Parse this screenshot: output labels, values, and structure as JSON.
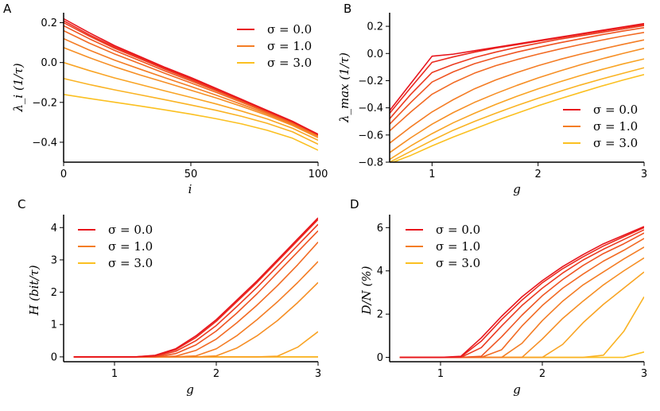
{
  "chart_data": [
    {
      "panel": "A",
      "type": "line",
      "xlabel": "i",
      "ylabel": "λ_i (1/τ)",
      "xlim": [
        0,
        100
      ],
      "ylim": [
        -0.5,
        0.25
      ],
      "xticks": [
        0,
        50,
        100
      ],
      "xtick_labels": [
        "0",
        "50",
        "100"
      ],
      "yticks": [
        0.2,
        0.0,
        -0.2,
        -0.4
      ],
      "ytick_labels": [
        "0.2",
        "0.0",
        "−0.2",
        "−0.4"
      ],
      "legend": [
        "σ = 0.0",
        "σ = 1.0",
        "σ = 3.0"
      ],
      "legend_loc": "top-right",
      "x": [
        0,
        10,
        20,
        30,
        40,
        50,
        60,
        70,
        80,
        90,
        100
      ],
      "series": [
        {
          "name": "s0",
          "values": [
            0.22,
            0.15,
            0.085,
            0.03,
            -0.025,
            -0.075,
            -0.13,
            -0.185,
            -0.24,
            -0.295,
            -0.36
          ]
        },
        {
          "name": "s1",
          "values": [
            0.21,
            0.14,
            0.078,
            0.025,
            -0.03,
            -0.08,
            -0.133,
            -0.187,
            -0.242,
            -0.297,
            -0.36
          ]
        },
        {
          "name": "s2",
          "values": [
            0.2,
            0.133,
            0.072,
            0.019,
            -0.035,
            -0.085,
            -0.137,
            -0.19,
            -0.244,
            -0.298,
            -0.361
          ]
        },
        {
          "name": "s3",
          "values": [
            0.185,
            0.12,
            0.061,
            0.009,
            -0.043,
            -0.092,
            -0.142,
            -0.194,
            -0.247,
            -0.3,
            -0.362
          ]
        },
        {
          "name": "s4",
          "values": [
            0.16,
            0.098,
            0.043,
            -0.006,
            -0.055,
            -0.102,
            -0.15,
            -0.2,
            -0.252,
            -0.305,
            -0.365
          ]
        },
        {
          "name": "s5",
          "values": [
            0.12,
            0.063,
            0.012,
            -0.033,
            -0.077,
            -0.12,
            -0.164,
            -0.21,
            -0.258,
            -0.31,
            -0.37
          ]
        },
        {
          "name": "s6",
          "values": [
            0.075,
            0.025,
            -0.021,
            -0.062,
            -0.1,
            -0.139,
            -0.178,
            -0.22,
            -0.265,
            -0.316,
            -0.377
          ]
        },
        {
          "name": "s7",
          "values": [
            0.0,
            -0.04,
            -0.077,
            -0.11,
            -0.143,
            -0.175,
            -0.208,
            -0.244,
            -0.283,
            -0.33,
            -0.39
          ]
        },
        {
          "name": "s8",
          "values": [
            -0.08,
            -0.11,
            -0.137,
            -0.162,
            -0.187,
            -0.213,
            -0.24,
            -0.27,
            -0.305,
            -0.348,
            -0.41
          ]
        },
        {
          "name": "s9",
          "values": [
            -0.16,
            -0.18,
            -0.199,
            -0.218,
            -0.238,
            -0.259,
            -0.282,
            -0.308,
            -0.34,
            -0.38,
            -0.44
          ]
        }
      ]
    },
    {
      "panel": "B",
      "type": "line",
      "xlabel": "g",
      "ylabel": "λ_max (1/τ)",
      "xlim": [
        0.6,
        3.0
      ],
      "ylim": [
        -0.8,
        0.3
      ],
      "xticks": [
        1,
        2,
        3
      ],
      "xtick_labels": [
        "1",
        "2",
        "3"
      ],
      "yticks": [
        0.2,
        0.0,
        -0.2,
        -0.4,
        -0.6,
        -0.8
      ],
      "ytick_labels": [
        "0.2",
        "0.0",
        "−0.2",
        "−0.4",
        "−0.6",
        "−0.8"
      ],
      "legend": [
        "σ = 0.0",
        "σ = 1.0",
        "σ = 3.0"
      ],
      "legend_loc": "bottom-right",
      "x": [
        0.6,
        0.8,
        1.0,
        1.2,
        1.4,
        1.6,
        1.8,
        2.0,
        2.2,
        2.4,
        2.6,
        2.8,
        3.0
      ],
      "series": [
        {
          "name": "s0",
          "values": [
            -0.42,
            -0.22,
            -0.02,
            -0.005,
            0.02,
            0.045,
            0.07,
            0.095,
            0.12,
            0.145,
            0.17,
            0.195,
            0.22
          ]
        },
        {
          "name": "s1",
          "values": [
            -0.44,
            -0.25,
            -0.065,
            -0.025,
            0.01,
            0.04,
            0.065,
            0.09,
            0.115,
            0.14,
            0.165,
            0.19,
            0.212
          ]
        },
        {
          "name": "s2",
          "values": [
            -0.48,
            -0.3,
            -0.14,
            -0.08,
            -0.03,
            0.01,
            0.045,
            0.075,
            0.105,
            0.13,
            0.155,
            0.18,
            0.205
          ]
        },
        {
          "name": "s3",
          "values": [
            -0.52,
            -0.36,
            -0.21,
            -0.135,
            -0.075,
            -0.03,
            0.01,
            0.045,
            0.078,
            0.108,
            0.138,
            0.165,
            0.19
          ]
        },
        {
          "name": "s4",
          "values": [
            -0.57,
            -0.43,
            -0.3,
            -0.215,
            -0.145,
            -0.09,
            -0.045,
            -0.005,
            0.032,
            0.066,
            0.098,
            0.128,
            0.155
          ]
        },
        {
          "name": "s5",
          "values": [
            -0.66,
            -0.54,
            -0.43,
            -0.34,
            -0.26,
            -0.195,
            -0.14,
            -0.09,
            -0.045,
            -0.005,
            0.032,
            0.067,
            0.1
          ]
        },
        {
          "name": "s6",
          "values": [
            -0.73,
            -0.62,
            -0.52,
            -0.435,
            -0.36,
            -0.295,
            -0.235,
            -0.18,
            -0.13,
            -0.083,
            -0.04,
            0.0,
            0.038
          ]
        },
        {
          "name": "s7",
          "values": [
            -0.78,
            -0.68,
            -0.59,
            -0.51,
            -0.44,
            -0.375,
            -0.315,
            -0.26,
            -0.21,
            -0.162,
            -0.118,
            -0.077,
            -0.04
          ]
        },
        {
          "name": "s8",
          "values": [
            -0.8,
            -0.72,
            -0.64,
            -0.565,
            -0.5,
            -0.44,
            -0.383,
            -0.33,
            -0.28,
            -0.232,
            -0.188,
            -0.146,
            -0.105
          ]
        },
        {
          "name": "s9",
          "values": [
            -0.81,
            -0.75,
            -0.68,
            -0.615,
            -0.555,
            -0.495,
            -0.44,
            -0.385,
            -0.335,
            -0.287,
            -0.24,
            -0.196,
            -0.155
          ]
        }
      ]
    },
    {
      "panel": "C",
      "type": "line",
      "xlabel": "g",
      "ylabel": "H (bit/τ)",
      "xlim": [
        0.5,
        3.0
      ],
      "ylim": [
        -0.15,
        4.4
      ],
      "xticks": [
        1,
        2,
        3
      ],
      "xtick_labels": [
        "1",
        "2",
        "3"
      ],
      "yticks": [
        0,
        1,
        2,
        3,
        4
      ],
      "ytick_labels": [
        "0",
        "1",
        "2",
        "3",
        "4"
      ],
      "legend": [
        "σ = 0.0",
        "σ = 1.0",
        "σ = 3.0"
      ],
      "legend_loc": "top-left",
      "x": [
        0.6,
        0.8,
        1.0,
        1.2,
        1.4,
        1.6,
        1.8,
        2.0,
        2.2,
        2.4,
        2.6,
        2.8,
        3.0
      ],
      "series": [
        {
          "name": "s0",
          "values": [
            0,
            0,
            0,
            0,
            0.05,
            0.25,
            0.65,
            1.15,
            1.75,
            2.35,
            3.0,
            3.65,
            4.3
          ]
        },
        {
          "name": "s1",
          "values": [
            0,
            0,
            0,
            0,
            0.04,
            0.22,
            0.6,
            1.1,
            1.7,
            2.3,
            2.95,
            3.6,
            4.25
          ]
        },
        {
          "name": "s2",
          "values": [
            0,
            0,
            0,
            0,
            0.02,
            0.17,
            0.5,
            0.97,
            1.55,
            2.15,
            2.8,
            3.45,
            4.1
          ]
        },
        {
          "name": "s3",
          "values": [
            0,
            0,
            0,
            0,
            0.0,
            0.1,
            0.37,
            0.8,
            1.35,
            1.95,
            2.6,
            3.25,
            3.9
          ]
        },
        {
          "name": "s4",
          "values": [
            0,
            0,
            0,
            0,
            0,
            0.02,
            0.2,
            0.55,
            1.05,
            1.6,
            2.2,
            2.85,
            3.55
          ]
        },
        {
          "name": "s5",
          "values": [
            0,
            0,
            0,
            0,
            0,
            0,
            0.03,
            0.25,
            0.65,
            1.15,
            1.7,
            2.3,
            2.95
          ]
        },
        {
          "name": "s6",
          "values": [
            0,
            0,
            0,
            0,
            0,
            0,
            0,
            0.03,
            0.27,
            0.65,
            1.12,
            1.68,
            2.3
          ]
        },
        {
          "name": "s7",
          "values": [
            0,
            0,
            0,
            0,
            0,
            0,
            0,
            0,
            0,
            0,
            0.02,
            0.3,
            0.78
          ]
        },
        {
          "name": "s8",
          "values": [
            0,
            0,
            0,
            0,
            0,
            0,
            0,
            0,
            0,
            0,
            0,
            0,
            0
          ]
        },
        {
          "name": "s9",
          "values": [
            0,
            0,
            0,
            0,
            0,
            0,
            0,
            0,
            0,
            0,
            0,
            0,
            0
          ]
        }
      ]
    },
    {
      "panel": "D",
      "type": "line",
      "xlabel": "g",
      "ylabel": "D/N (%)",
      "xlim": [
        0.5,
        3.0
      ],
      "ylim": [
        -0.2,
        6.6
      ],
      "xticks": [
        1,
        2,
        3
      ],
      "xtick_labels": [
        "1",
        "2",
        "3"
      ],
      "yticks": [
        0,
        2,
        4,
        6
      ],
      "ytick_labels": [
        "0",
        "2",
        "4",
        "6"
      ],
      "legend": [
        "σ = 0.0",
        "σ = 1.0",
        "σ = 3.0"
      ],
      "legend_loc": "top-left",
      "x": [
        0.6,
        0.8,
        1.0,
        1.2,
        1.4,
        1.6,
        1.8,
        2.0,
        2.2,
        2.4,
        2.6,
        2.8,
        3.0
      ],
      "series": [
        {
          "name": "s0",
          "values": [
            0,
            0,
            0,
            0.05,
            0.9,
            1.9,
            2.8,
            3.55,
            4.2,
            4.75,
            5.25,
            5.65,
            6.05
          ]
        },
        {
          "name": "s1",
          "values": [
            0,
            0,
            0,
            0.02,
            0.75,
            1.75,
            2.65,
            3.45,
            4.1,
            4.65,
            5.15,
            5.58,
            6.0
          ]
        },
        {
          "name": "s2",
          "values": [
            0,
            0,
            0,
            0,
            0.45,
            1.45,
            2.4,
            3.2,
            3.9,
            4.5,
            5.0,
            5.45,
            5.9
          ]
        },
        {
          "name": "s3",
          "values": [
            0,
            0,
            0,
            0,
            0.05,
            0.95,
            1.95,
            2.85,
            3.6,
            4.25,
            4.8,
            5.25,
            5.75
          ]
        },
        {
          "name": "s4",
          "values": [
            0,
            0,
            0,
            0,
            0,
            0.35,
            1.45,
            2.4,
            3.2,
            3.85,
            4.45,
            4.95,
            5.5
          ]
        },
        {
          "name": "s5",
          "values": [
            0,
            0,
            0,
            0,
            0,
            0,
            0.65,
            1.7,
            2.6,
            3.35,
            3.95,
            4.55,
            5.1
          ]
        },
        {
          "name": "s6",
          "values": [
            0,
            0,
            0,
            0,
            0,
            0,
            0,
            0.85,
            1.8,
            2.6,
            3.35,
            4.0,
            4.6
          ]
        },
        {
          "name": "s7",
          "values": [
            0,
            0,
            0,
            0,
            0,
            0,
            0,
            0,
            0.6,
            1.6,
            2.45,
            3.2,
            3.95
          ]
        },
        {
          "name": "s8",
          "values": [
            0,
            0,
            0,
            0,
            0,
            0,
            0,
            0,
            0,
            0,
            0.1,
            1.2,
            2.8
          ]
        },
        {
          "name": "s9",
          "values": [
            0,
            0,
            0,
            0,
            0,
            0,
            0,
            0,
            0,
            0,
            0,
            0,
            0.25
          ]
        }
      ]
    }
  ],
  "colors": {
    "series": [
      "#e8141c",
      "#ea2a1f",
      "#ec3b20",
      "#ef5522",
      "#f26b24",
      "#f47d25",
      "#f68f25",
      "#f9a424",
      "#fab323",
      "#fbc021"
    ],
    "legend": [
      "#e8141c",
      "#f47d25",
      "#fbc021"
    ],
    "axis": "#000000"
  }
}
